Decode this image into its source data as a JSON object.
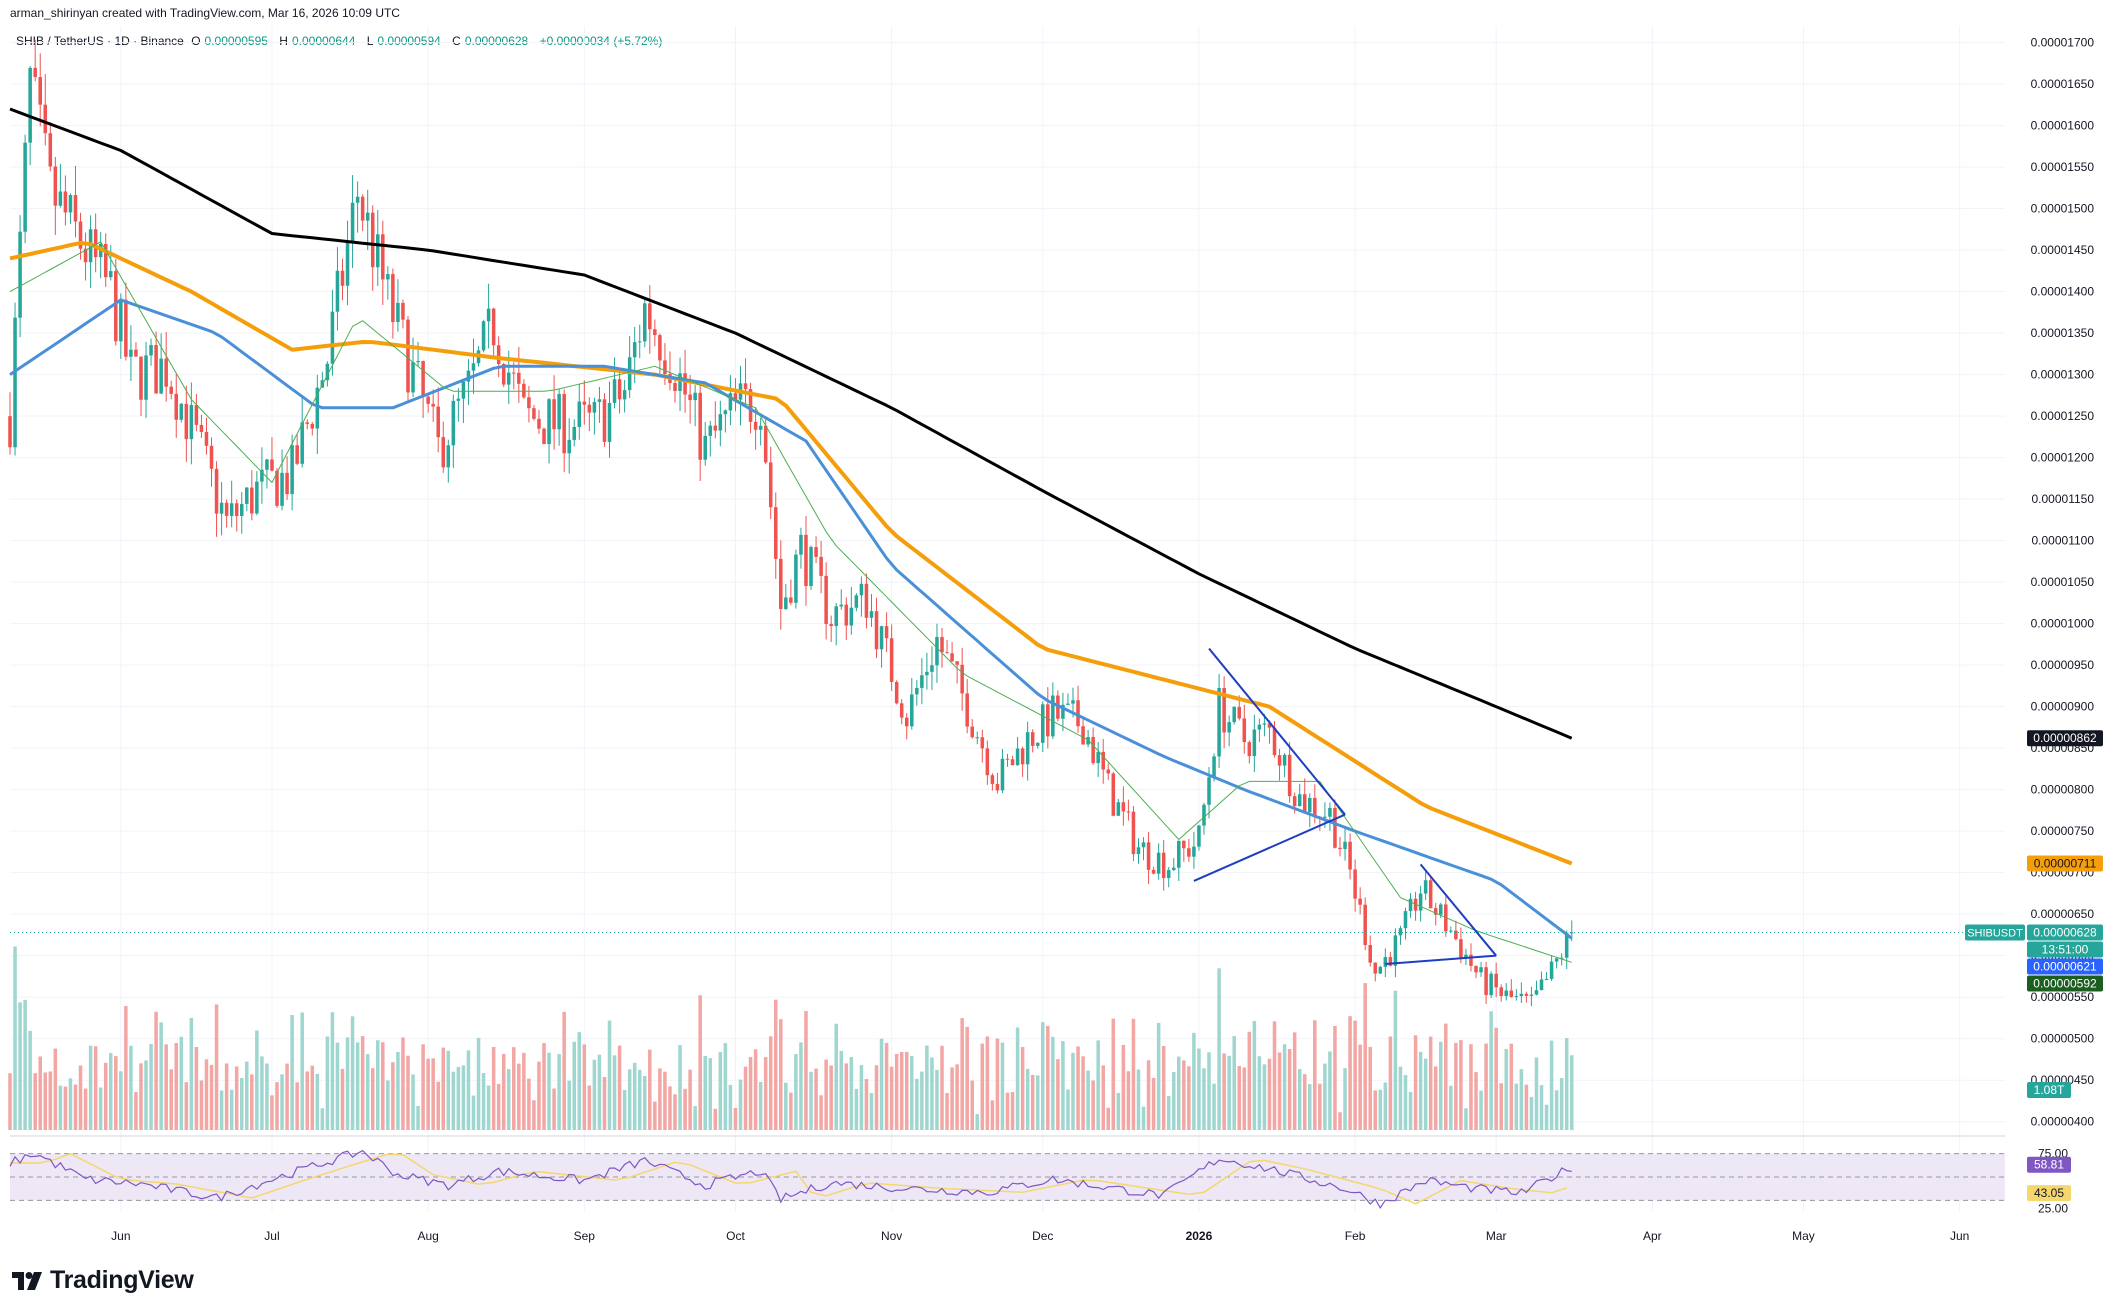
{
  "header": {
    "attribution": "arman_shirinyan created with TradingView.com, Mar 16, 2026 10:09 UTC"
  },
  "symbol_line": {
    "title": "SHIB / TetherUS · 1D · Binance",
    "open_label": "O",
    "open": "0.00000595",
    "high_label": "H",
    "high": "0.00000644",
    "low_label": "L",
    "low": "0.00000594",
    "close_label": "C",
    "close": "0.00000628",
    "change": "+0.00000034 (+5.72%)"
  },
  "logo": {
    "text": "TradingView"
  },
  "colors": {
    "up": "#26a69a",
    "down": "#ef5350",
    "up_volume": "#9fd6cf",
    "down_volume": "#f2a7a4",
    "ma200": "#000000",
    "ma100": "#f59e0b",
    "ma50": "#4a90d9",
    "ma20": "#4caf50",
    "rsi": "#7e57c2",
    "rsi_ma": "#f5d76e",
    "rsi_band": "#ede7f6",
    "pattern_lines": "#1e3fbf"
  },
  "chart_data": {
    "type": "candlestick",
    "symbol": "SHIBUSDT",
    "interval": "1D",
    "x_axis": {
      "labels": [
        "Jun",
        "Jul",
        "Aug",
        "Sep",
        "Oct",
        "Nov",
        "Dec",
        "2026",
        "Feb",
        "Mar",
        "Apr",
        "May",
        "Jun"
      ],
      "start": "2025-05-10",
      "end": "2026-06-10"
    },
    "y_axis": {
      "ylim": [
        3.9e-06,
        1.72e-05
      ],
      "labels": [
        "0.00001700",
        "0.00001650",
        "0.00001600",
        "0.00001550",
        "0.00001500",
        "0.00001450",
        "0.00001400",
        "0.00001350",
        "0.00001300",
        "0.00001250",
        "0.00001200",
        "0.00001150",
        "0.00001100",
        "0.00001050",
        "0.00001000",
        "0.00000950",
        "0.00000900",
        "0.00000850",
        "0.00000800",
        "0.00000750",
        "0.00000700",
        "0.00000650",
        "0.00000600",
        "0.00000550",
        "0.00000500",
        "0.00000450",
        "0.00000400"
      ]
    },
    "price_path": [
      {
        "date": "2025-05-10",
        "p": 1.25e-05
      },
      {
        "date": "2025-05-14",
        "p": 1.65e-05
      },
      {
        "date": "2025-05-18",
        "p": 1.52e-05
      },
      {
        "date": "2025-05-24",
        "p": 1.46e-05
      },
      {
        "date": "2025-05-30",
        "p": 1.4e-05
      },
      {
        "date": "2025-06-03",
        "p": 1.3e-05
      },
      {
        "date": "2025-06-10",
        "p": 1.31e-05
      },
      {
        "date": "2025-06-16",
        "p": 1.22e-05
      },
      {
        "date": "2025-06-22",
        "p": 1.12e-05
      },
      {
        "date": "2025-06-28",
        "p": 1.16e-05
      },
      {
        "date": "2025-07-05",
        "p": 1.18e-05
      },
      {
        "date": "2025-07-12",
        "p": 1.32e-05
      },
      {
        "date": "2025-07-18",
        "p": 1.52e-05
      },
      {
        "date": "2025-07-24",
        "p": 1.39e-05
      },
      {
        "date": "2025-07-29",
        "p": 1.3e-05
      },
      {
        "date": "2025-08-03",
        "p": 1.21e-05
      },
      {
        "date": "2025-08-09",
        "p": 1.28e-05
      },
      {
        "date": "2025-08-14",
        "p": 1.36e-05
      },
      {
        "date": "2025-08-20",
        "p": 1.25e-05
      },
      {
        "date": "2025-08-27",
        "p": 1.24e-05
      },
      {
        "date": "2025-09-03",
        "p": 1.24e-05
      },
      {
        "date": "2025-09-09",
        "p": 1.28e-05
      },
      {
        "date": "2025-09-13",
        "p": 1.38e-05
      },
      {
        "date": "2025-09-19",
        "p": 1.31e-05
      },
      {
        "date": "2025-09-25",
        "p": 1.21e-05
      },
      {
        "date": "2025-10-01",
        "p": 1.26e-05
      },
      {
        "date": "2025-10-06",
        "p": 1.27e-05
      },
      {
        "date": "2025-10-10",
        "p": 1.02e-05
      },
      {
        "date": "2025-10-14",
        "p": 1.09e-05
      },
      {
        "date": "2025-10-20",
        "p": 1.01e-05
      },
      {
        "date": "2025-10-27",
        "p": 1.03e-05
      },
      {
        "date": "2025-11-04",
        "p": 8.9e-06
      },
      {
        "date": "2025-11-10",
        "p": 9.8e-06
      },
      {
        "date": "2025-11-16",
        "p": 9e-06
      },
      {
        "date": "2025-11-22",
        "p": 8.1e-06
      },
      {
        "date": "2025-11-28",
        "p": 8.6e-06
      },
      {
        "date": "2025-12-03",
        "p": 8.9e-06
      },
      {
        "date": "2025-12-09",
        "p": 8.8e-06
      },
      {
        "date": "2025-12-14",
        "p": 8e-06
      },
      {
        "date": "2025-12-20",
        "p": 7.3e-06
      },
      {
        "date": "2025-12-26",
        "p": 7.1e-06
      },
      {
        "date": "2026-01-01",
        "p": 7.4e-06
      },
      {
        "date": "2026-01-05",
        "p": 9e-06
      },
      {
        "date": "2026-01-10",
        "p": 8.6e-06
      },
      {
        "date": "2026-01-15",
        "p": 8.7e-06
      },
      {
        "date": "2026-01-21",
        "p": 7.9e-06
      },
      {
        "date": "2026-01-27",
        "p": 7.7e-06
      },
      {
        "date": "2026-01-31",
        "p": 7e-06
      },
      {
        "date": "2026-02-05",
        "p": 5.8e-06
      },
      {
        "date": "2026-02-10",
        "p": 6.2e-06
      },
      {
        "date": "2026-02-14",
        "p": 6.8e-06
      },
      {
        "date": "2026-02-20",
        "p": 6.3e-06
      },
      {
        "date": "2026-02-26",
        "p": 5.7e-06
      },
      {
        "date": "2026-03-03",
        "p": 5.5e-06
      },
      {
        "date": "2026-03-08",
        "p": 5.4e-06
      },
      {
        "date": "2026-03-12",
        "p": 5.8e-06
      },
      {
        "date": "2026-03-16",
        "p": 6.28e-06
      }
    ],
    "moving_averages": [
      {
        "name": "ma200",
        "points": [
          {
            "date": "2025-05-10",
            "v": 1.62e-05
          },
          {
            "date": "2025-06-01",
            "v": 1.57e-05
          },
          {
            "date": "2025-07-01",
            "v": 1.47e-05
          },
          {
            "date": "2025-08-01",
            "v": 1.45e-05
          },
          {
            "date": "2025-09-01",
            "v": 1.42e-05
          },
          {
            "date": "2025-10-01",
            "v": 1.35e-05
          },
          {
            "date": "2025-11-01",
            "v": 1.26e-05
          },
          {
            "date": "2025-12-01",
            "v": 1.16e-05
          },
          {
            "date": "2026-01-01",
            "v": 1.06e-05
          },
          {
            "date": "2026-02-01",
            "v": 9.7e-06
          },
          {
            "date": "2026-03-01",
            "v": 9e-06
          },
          {
            "date": "2026-03-16",
            "v": 8.62e-06
          }
        ]
      },
      {
        "name": "ma100",
        "points": [
          {
            "date": "2025-05-10",
            "v": 1.44e-05
          },
          {
            "date": "2025-05-25",
            "v": 1.46e-05
          },
          {
            "date": "2025-06-15",
            "v": 1.4e-05
          },
          {
            "date": "2025-07-05",
            "v": 1.33e-05
          },
          {
            "date": "2025-07-20",
            "v": 1.34e-05
          },
          {
            "date": "2025-08-15",
            "v": 1.32e-05
          },
          {
            "date": "2025-09-15",
            "v": 1.3e-05
          },
          {
            "date": "2025-10-10",
            "v": 1.27e-05
          },
          {
            "date": "2025-11-01",
            "v": 1.11e-05
          },
          {
            "date": "2025-12-01",
            "v": 9.7e-06
          },
          {
            "date": "2026-01-15",
            "v": 9e-06
          },
          {
            "date": "2026-02-15",
            "v": 7.8e-06
          },
          {
            "date": "2026-03-16",
            "v": 7.11e-06
          }
        ]
      },
      {
        "name": "ma50",
        "points": [
          {
            "date": "2025-05-10",
            "v": 1.3e-05
          },
          {
            "date": "2025-06-01",
            "v": 1.39e-05
          },
          {
            "date": "2025-06-20",
            "v": 1.35e-05
          },
          {
            "date": "2025-07-10",
            "v": 1.26e-05
          },
          {
            "date": "2025-07-25",
            "v": 1.26e-05
          },
          {
            "date": "2025-08-15",
            "v": 1.31e-05
          },
          {
            "date": "2025-09-05",
            "v": 1.31e-05
          },
          {
            "date": "2025-09-25",
            "v": 1.29e-05
          },
          {
            "date": "2025-10-15",
            "v": 1.22e-05
          },
          {
            "date": "2025-11-01",
            "v": 1.07e-05
          },
          {
            "date": "2025-12-01",
            "v": 9.1e-06
          },
          {
            "date": "2025-12-25",
            "v": 8.4e-06
          },
          {
            "date": "2026-01-10",
            "v": 8e-06
          },
          {
            "date": "2026-02-01",
            "v": 7.5e-06
          },
          {
            "date": "2026-03-01",
            "v": 6.9e-06
          },
          {
            "date": "2026-03-16",
            "v": 6.21e-06
          }
        ]
      },
      {
        "name": "ma20",
        "points": [
          {
            "date": "2025-05-10",
            "v": 1.4e-05
          },
          {
            "date": "2025-05-28",
            "v": 1.46e-05
          },
          {
            "date": "2025-06-15",
            "v": 1.27e-05
          },
          {
            "date": "2025-07-01",
            "v": 1.17e-05
          },
          {
            "date": "2025-07-18",
            "v": 1.37e-05
          },
          {
            "date": "2025-08-05",
            "v": 1.28e-05
          },
          {
            "date": "2025-08-25",
            "v": 1.28e-05
          },
          {
            "date": "2025-09-15",
            "v": 1.31e-05
          },
          {
            "date": "2025-10-05",
            "v": 1.26e-05
          },
          {
            "date": "2025-10-20",
            "v": 1.1e-05
          },
          {
            "date": "2025-11-15",
            "v": 9.4e-06
          },
          {
            "date": "2025-12-10",
            "v": 8.6e-06
          },
          {
            "date": "2025-12-28",
            "v": 7.4e-06
          },
          {
            "date": "2026-01-10",
            "v": 8.1e-06
          },
          {
            "date": "2026-01-25",
            "v": 8.1e-06
          },
          {
            "date": "2026-02-10",
            "v": 6.7e-06
          },
          {
            "date": "2026-02-25",
            "v": 6.3e-06
          },
          {
            "date": "2026-03-16",
            "v": 5.92e-06
          }
        ]
      }
    ],
    "trendlines": [
      {
        "name": "triangle-top",
        "from": {
          "date": "2026-01-03",
          "p": 9.7e-06
        },
        "to": {
          "date": "2026-01-30",
          "p": 7.7e-06
        }
      },
      {
        "name": "triangle-bottom",
        "from": {
          "date": "2025-12-31",
          "p": 6.9e-06
        },
        "to": {
          "date": "2026-01-30",
          "p": 7.7e-06
        }
      },
      {
        "name": "wedge-top",
        "from": {
          "date": "2026-02-14",
          "p": 7.1e-06
        },
        "to": {
          "date": "2026-03-01",
          "p": 6e-06
        }
      },
      {
        "name": "wedge-bottom",
        "from": {
          "date": "2026-02-07",
          "p": 5.9e-06
        },
        "to": {
          "date": "2026-03-01",
          "p": 6e-06
        }
      }
    ],
    "price_labels": [
      {
        "name": "ma200",
        "value": "0.00000862",
        "bg": "#131722",
        "fg": "#ffffff"
      },
      {
        "name": "ma100",
        "value": "0.00000711",
        "bg": "#f59e0b",
        "fg": "#131722"
      },
      {
        "name": "last",
        "value": "0.00000628",
        "bg": "#26a69a",
        "fg": "#ffffff",
        "tag": "SHIBUSDT"
      },
      {
        "name": "countdown",
        "value": "13:51:00",
        "bg": "#26a69a",
        "fg": "#ffffff"
      },
      {
        "name": "ma50",
        "value": "0.00000621",
        "bg": "#2962ff",
        "fg": "#ffffff"
      },
      {
        "name": "ma20",
        "value": "0.00000592",
        "bg": "#1b5e20",
        "fg": "#ffffff"
      },
      {
        "name": "volume",
        "value": "1.08T",
        "bg": "#26a69a",
        "fg": "#ffffff"
      }
    ],
    "rsi": {
      "levels": [
        "75.00",
        "25.00"
      ],
      "value": "58.81",
      "ma_value": "43.05",
      "ylim": [
        20,
        80
      ],
      "band": [
        30,
        70
      ],
      "path": [
        {
          "date": "2025-05-10",
          "v": 62
        },
        {
          "date": "2025-05-15",
          "v": 70
        },
        {
          "date": "2025-05-25",
          "v": 48
        },
        {
          "date": "2025-06-05",
          "v": 44
        },
        {
          "date": "2025-06-20",
          "v": 32
        },
        {
          "date": "2025-07-01",
          "v": 48
        },
        {
          "date": "2025-07-12",
          "v": 63
        },
        {
          "date": "2025-07-19",
          "v": 72
        },
        {
          "date": "2025-07-26",
          "v": 52
        },
        {
          "date": "2025-08-05",
          "v": 43
        },
        {
          "date": "2025-08-15",
          "v": 55
        },
        {
          "date": "2025-09-01",
          "v": 47
        },
        {
          "date": "2025-09-13",
          "v": 64
        },
        {
          "date": "2025-09-25",
          "v": 43
        },
        {
          "date": "2025-10-06",
          "v": 55
        },
        {
          "date": "2025-10-10",
          "v": 31
        },
        {
          "date": "2025-10-20",
          "v": 45
        },
        {
          "date": "2025-11-05",
          "v": 40
        },
        {
          "date": "2025-11-20",
          "v": 37
        },
        {
          "date": "2025-12-03",
          "v": 48
        },
        {
          "date": "2025-12-25",
          "v": 34
        },
        {
          "date": "2026-01-05",
          "v": 66
        },
        {
          "date": "2026-01-15",
          "v": 57
        },
        {
          "date": "2026-01-30",
          "v": 40
        },
        {
          "date": "2026-02-06",
          "v": 27
        },
        {
          "date": "2026-02-15",
          "v": 47
        },
        {
          "date": "2026-02-25",
          "v": 40
        },
        {
          "date": "2026-03-06",
          "v": 36
        },
        {
          "date": "2026-03-16",
          "v": 58.81
        }
      ]
    }
  }
}
